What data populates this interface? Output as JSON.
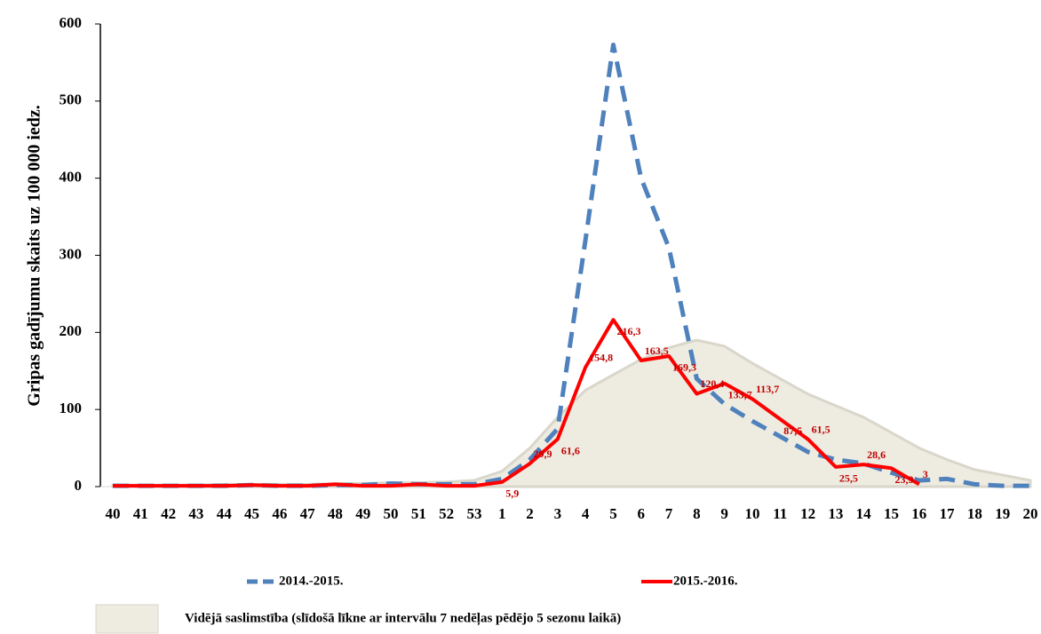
{
  "chart_data": {
    "type": "line",
    "y_label": "Gripas gadījumu skaits uz 100 000 iedz.",
    "categories": [
      "40",
      "41",
      "42",
      "43",
      "44",
      "45",
      "46",
      "47",
      "48",
      "49",
      "50",
      "51",
      "52",
      "53",
      "1",
      "2",
      "3",
      "4",
      "5",
      "6",
      "7",
      "8",
      "9",
      "10",
      "11",
      "12",
      "13",
      "14",
      "15",
      "16",
      "17",
      "18",
      "19",
      "20"
    ],
    "ylim": [
      0,
      600
    ],
    "yticks": [
      0,
      100,
      200,
      300,
      400,
      500,
      600
    ],
    "series": [
      {
        "name": "Vidējā saslimstība (slīdošā līkne ar intervālu 7 nedēļas pēdējo 5 sezonu laikā)",
        "type": "area",
        "color": "#eeebe0",
        "values": [
          2,
          2,
          2,
          2,
          3,
          3,
          3,
          3,
          4,
          4,
          5,
          5,
          6,
          8,
          20,
          50,
          90,
          125,
          145,
          165,
          180,
          190,
          182,
          160,
          140,
          120,
          105,
          90,
          70,
          50,
          35,
          22,
          15,
          8
        ]
      },
      {
        "name": "2014.-2015.",
        "type": "line",
        "dash": true,
        "color": "#4f81bd",
        "values": [
          1,
          1,
          1,
          1,
          1,
          2,
          1,
          1,
          2,
          2,
          4,
          3,
          3,
          3,
          10,
          35,
          75,
          320,
          573,
          400,
          310,
          140,
          107,
          85,
          65,
          45,
          35,
          30,
          18,
          8,
          10,
          3,
          1,
          1
        ]
      },
      {
        "name": "2015.-2016.",
        "type": "line",
        "dash": false,
        "color": "#ff0000",
        "values": [
          1,
          1,
          1,
          1,
          1,
          2,
          1,
          1,
          3,
          1,
          1,
          3,
          1,
          1,
          5.9,
          29.9,
          61.6,
          154.8,
          216.3,
          163.5,
          169.3,
          120.4,
          133.7,
          113.7,
          87.5,
          61.5,
          25.5,
          28.6,
          23.9,
          3,
          null,
          null,
          null,
          null
        ],
        "value_labels": [
          null,
          null,
          null,
          null,
          null,
          null,
          null,
          null,
          null,
          null,
          null,
          null,
          null,
          null,
          "5,9",
          "29,9",
          "61,6",
          "154,8",
          "216,3",
          "163,5",
          "169,3",
          "120,4",
          "133,7",
          "113,7",
          "87,5",
          "61,5",
          "25,5",
          "28,6",
          "23,9",
          "3",
          null,
          null,
          null,
          null
        ]
      }
    ]
  }
}
